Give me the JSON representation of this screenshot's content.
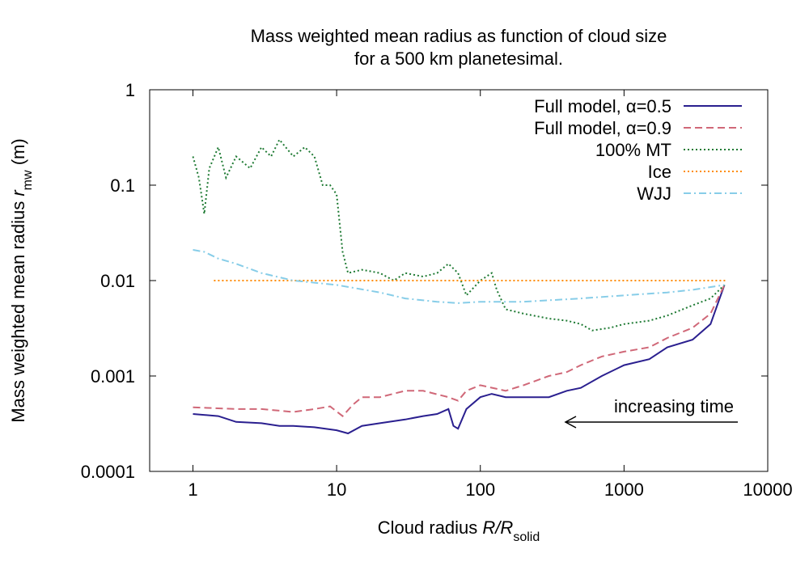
{
  "chart_data": {
    "type": "line",
    "title": [
      "Mass weighted mean radius as function of cloud size",
      "for a 500 km planetesimal."
    ],
    "x_label": {
      "text": "Cloud radius ",
      "symbol": "R/R",
      "subscript": "solid"
    },
    "y_label": {
      "text": "Mass weighted mean radius ",
      "symbol": "r",
      "subscript": "mw",
      "unit": " (m)"
    },
    "x_scale": "log",
    "y_scale": "log",
    "xlim": [
      0.5,
      10000
    ],
    "xticks": [
      1,
      10,
      100,
      1000,
      10000
    ],
    "ylim": [
      0.0001,
      1
    ],
    "yticks": [
      0.0001,
      0.001,
      0.01,
      0.1,
      1
    ],
    "legend": "top-right",
    "annotation": "increasing time",
    "series": [
      {
        "name": "Full model, α=0.5",
        "color": "#2a1f8f",
        "style": "solid",
        "x": [
          1,
          1.5,
          2,
          3,
          4,
          5,
          7,
          10,
          12,
          15,
          20,
          30,
          40,
          50,
          60,
          65,
          70,
          80,
          100,
          120,
          150,
          200,
          300,
          400,
          500,
          700,
          1000,
          1500,
          2000,
          3000,
          4000,
          5000
        ],
        "values": [
          0.0004,
          0.00038,
          0.00033,
          0.00032,
          0.0003,
          0.0003,
          0.00029,
          0.00027,
          0.00025,
          0.0003,
          0.00032,
          0.00035,
          0.00038,
          0.0004,
          0.00045,
          0.0003,
          0.00028,
          0.00045,
          0.0006,
          0.00065,
          0.0006,
          0.0006,
          0.0006,
          0.0007,
          0.00075,
          0.001,
          0.0013,
          0.0015,
          0.002,
          0.0024,
          0.0035,
          0.009
        ]
      },
      {
        "name": "Full model, α=0.9",
        "color": "#d06878",
        "style": "dashed",
        "x": [
          1,
          2,
          3,
          5,
          7,
          9,
          11,
          13,
          15,
          20,
          30,
          40,
          60,
          70,
          80,
          100,
          150,
          200,
          300,
          400,
          500,
          700,
          1000,
          1500,
          2000,
          3000,
          4000,
          5000
        ],
        "values": [
          0.00047,
          0.00045,
          0.00045,
          0.00042,
          0.00045,
          0.00048,
          0.00038,
          0.0005,
          0.0006,
          0.0006,
          0.0007,
          0.0007,
          0.0006,
          0.00055,
          0.0007,
          0.0008,
          0.0007,
          0.0008,
          0.001,
          0.0011,
          0.0013,
          0.0016,
          0.0018,
          0.002,
          0.0025,
          0.0032,
          0.0045,
          0.009
        ]
      },
      {
        "name": "100% MT",
        "color": "#1e7a33",
        "style": "dotted",
        "x": [
          1,
          1.1,
          1.2,
          1.3,
          1.5,
          1.7,
          2,
          2.5,
          3,
          3.5,
          4,
          5,
          6,
          7,
          8,
          9,
          10,
          11,
          12,
          15,
          20,
          25,
          30,
          40,
          50,
          60,
          70,
          80,
          100,
          120,
          130,
          150,
          200,
          300,
          400,
          500,
          600,
          800,
          1000,
          1500,
          2000,
          3000,
          4000,
          5000
        ],
        "values": [
          0.2,
          0.12,
          0.05,
          0.15,
          0.25,
          0.12,
          0.2,
          0.15,
          0.25,
          0.2,
          0.3,
          0.2,
          0.25,
          0.2,
          0.1,
          0.1,
          0.08,
          0.02,
          0.012,
          0.013,
          0.012,
          0.01,
          0.012,
          0.011,
          0.012,
          0.015,
          0.012,
          0.007,
          0.01,
          0.012,
          0.008,
          0.005,
          0.0045,
          0.004,
          0.0038,
          0.0035,
          0.003,
          0.0032,
          0.0035,
          0.0038,
          0.0043,
          0.0055,
          0.0065,
          0.009
        ]
      },
      {
        "name": "Ice",
        "color": "#ff8c00",
        "style": "dotted",
        "x": [
          1.4,
          5200
        ],
        "values": [
          0.01,
          0.01
        ]
      },
      {
        "name": "WJJ",
        "color": "#87cde8",
        "style": "dashdot",
        "x": [
          1,
          1.2,
          1.5,
          2,
          3,
          5,
          10,
          20,
          30,
          50,
          70,
          100,
          200,
          500,
          1000,
          2000,
          3000,
          5000
        ],
        "values": [
          0.021,
          0.02,
          0.017,
          0.015,
          0.012,
          0.01,
          0.009,
          0.0075,
          0.0065,
          0.006,
          0.0058,
          0.006,
          0.006,
          0.0065,
          0.007,
          0.0075,
          0.008,
          0.009
        ]
      }
    ]
  }
}
